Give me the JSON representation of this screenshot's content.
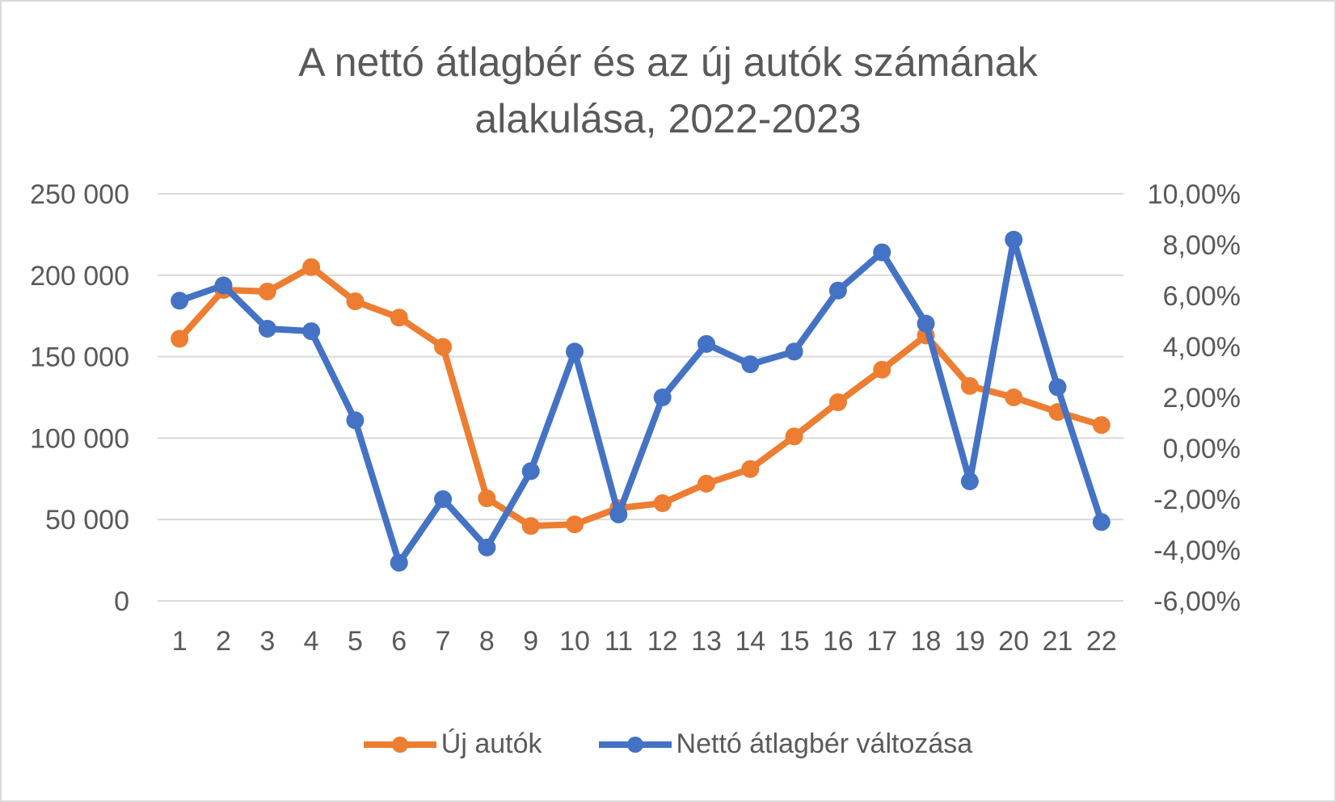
{
  "chart_data": {
    "type": "line",
    "title_lines": [
      "A nettó átlagbér és az új autók számának",
      "alakulása, 2022-2023"
    ],
    "x": [
      "1",
      "2",
      "3",
      "4",
      "5",
      "6",
      "7",
      "8",
      "9",
      "10",
      "11",
      "12",
      "13",
      "14",
      "15",
      "16",
      "17",
      "18",
      "19",
      "20",
      "21",
      "22"
    ],
    "y_left": {
      "ylim": [
        0,
        250000
      ],
      "ticks": [
        0,
        50000,
        100000,
        150000,
        200000,
        250000
      ],
      "tick_labels": [
        "0",
        "50 000",
        "100 000",
        "150 000",
        "200 000",
        "250 000"
      ]
    },
    "y_right": {
      "ylim": [
        -0.06,
        0.1
      ],
      "ticks": [
        -0.06,
        -0.04,
        -0.02,
        0.0,
        0.02,
        0.04,
        0.06,
        0.08,
        0.1
      ],
      "tick_labels": [
        "-6,00%",
        "-4,00%",
        "-2,00%",
        "0,00%",
        "2,00%",
        "4,00%",
        "6,00%",
        "8,00%",
        "10,00%"
      ]
    },
    "grid": true,
    "legend_position": "bottom",
    "series": [
      {
        "name": "Új autók",
        "axis": "left",
        "color": "#ed7d31",
        "values": [
          161000,
          191000,
          190000,
          205000,
          184000,
          174000,
          156000,
          63000,
          46000,
          47000,
          57000,
          60000,
          72000,
          81000,
          101000,
          122000,
          142000,
          163000,
          132000,
          125000,
          116000,
          108000
        ]
      },
      {
        "name": "Nettó átlagbér változása",
        "axis": "right",
        "color": "#4472c4",
        "values": [
          0.058,
          0.064,
          0.047,
          0.046,
          0.011,
          -0.045,
          -0.02,
          -0.039,
          -0.009,
          0.038,
          -0.026,
          0.02,
          0.041,
          0.033,
          0.038,
          0.062,
          0.077,
          0.049,
          -0.013,
          0.082,
          0.024,
          -0.029
        ]
      }
    ]
  }
}
